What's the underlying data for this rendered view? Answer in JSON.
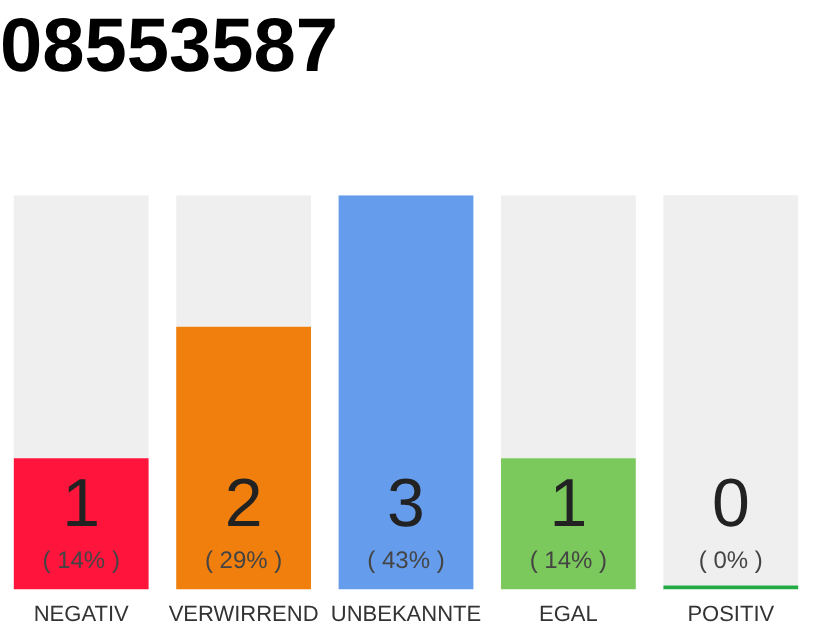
{
  "chart_data": {
    "type": "bar",
    "title": "08553587",
    "categories": [
      "NEGATIV",
      "VERWIRREND",
      "UNBEKANNTE",
      "EGAL",
      "POSITIV"
    ],
    "stacked": true,
    "series": [
      {
        "values": [
          1,
          2,
          3,
          1,
          0
        ],
        "colors": [
          "#ff143c",
          "#f07f0e",
          "#669cec",
          "#7bc95c",
          "#22aa44"
        ],
        "value_labels": [
          "1\n( 14% )",
          "2\n( 29% )",
          "3\n( 43% )",
          "1\n( 14% )",
          "0\n( 0% )"
        ]
      },
      {
        "values": [
          2,
          1,
          0,
          2,
          3
        ],
        "color": "#efefef"
      }
    ],
    "ylim": [
      0,
      3
    ],
    "tick_labels": "x",
    "grid": false,
    "legend": false
  }
}
